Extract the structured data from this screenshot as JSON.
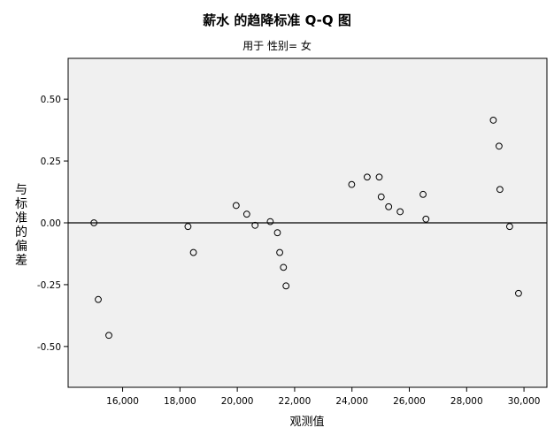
{
  "chart_data": {
    "type": "scatter",
    "title": "薪水 的趋降标准 Q-Q 图",
    "subtitle": "用于 性别= 女",
    "xlabel": "观测值",
    "ylabel": "与标准的偏差",
    "xlim": [
      14100,
      30800
    ],
    "ylim": [
      -0.665,
      0.665
    ],
    "xticks": [
      16000,
      18000,
      20000,
      22000,
      24000,
      26000,
      28000,
      30000
    ],
    "xtick_labels": [
      "16,000",
      "18,000",
      "20,000",
      "22,000",
      "24,000",
      "26,000",
      "28,000",
      "30,000"
    ],
    "yticks": [
      0.5,
      0.25,
      0.0,
      -0.25,
      -0.5
    ],
    "ytick_labels": [
      "0.50",
      "0.25",
      "0.00",
      "-0.25",
      "-0.50"
    ],
    "reference_line_y": 0,
    "marker": "open-circle",
    "colors": {
      "plot_background": "#f0f0f0",
      "marker": "#000000",
      "line": "#000000"
    },
    "points": [
      {
        "x": 15000,
        "y": 0.0
      },
      {
        "x": 15150,
        "y": -0.31
      },
      {
        "x": 15520,
        "y": -0.455
      },
      {
        "x": 18280,
        "y": -0.015
      },
      {
        "x": 18470,
        "y": -0.12
      },
      {
        "x": 19960,
        "y": 0.07
      },
      {
        "x": 20330,
        "y": 0.035
      },
      {
        "x": 20620,
        "y": -0.01
      },
      {
        "x": 21150,
        "y": 0.005
      },
      {
        "x": 21400,
        "y": -0.04
      },
      {
        "x": 21480,
        "y": -0.12
      },
      {
        "x": 21610,
        "y": -0.18
      },
      {
        "x": 21700,
        "y": -0.255
      },
      {
        "x": 23990,
        "y": 0.155
      },
      {
        "x": 24530,
        "y": 0.185
      },
      {
        "x": 24950,
        "y": 0.185
      },
      {
        "x": 25020,
        "y": 0.105
      },
      {
        "x": 25280,
        "y": 0.065
      },
      {
        "x": 25680,
        "y": 0.045
      },
      {
        "x": 26480,
        "y": 0.115
      },
      {
        "x": 26580,
        "y": 0.015
      },
      {
        "x": 28930,
        "y": 0.415
      },
      {
        "x": 29130,
        "y": 0.31
      },
      {
        "x": 29160,
        "y": 0.135
      },
      {
        "x": 29500,
        "y": -0.015
      },
      {
        "x": 29810,
        "y": -0.285
      }
    ]
  }
}
